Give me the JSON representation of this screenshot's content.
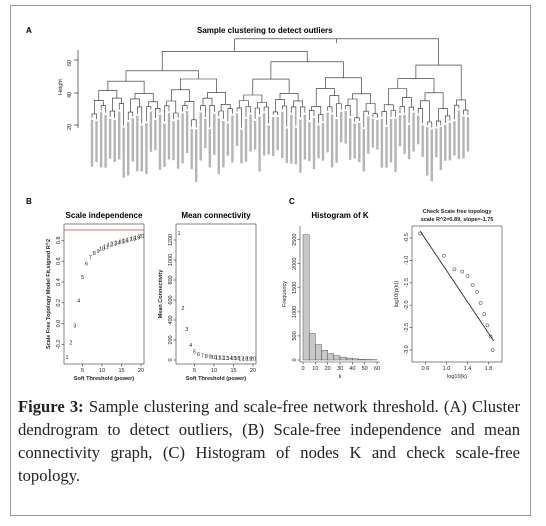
{
  "panels": {
    "A": {
      "label": "A",
      "title": "Sample clustering to detect outliers",
      "ylabel": "Height",
      "yticks": [
        "20",
        "40",
        "60"
      ]
    },
    "B": {
      "label": "B",
      "scale": {
        "title": "Scale independence",
        "ylabel": "Scale Free Topology Model Fit,signed R^2",
        "xlabel": "Soft Threshold (power)",
        "yticks": [
          "-0.2",
          "0.0",
          "0.2",
          "0.4",
          "0.6",
          "0.8"
        ],
        "xticks": [
          "5",
          "10",
          "15",
          "20"
        ]
      },
      "mean": {
        "title": "Mean connectivity",
        "ylabel": "Mean Connectivity",
        "xlabel": "Soft Threshold (power)",
        "yticks": [
          "0",
          "200",
          "400",
          "600",
          "800",
          "1000",
          "1200"
        ],
        "xticks": [
          "5",
          "10",
          "15",
          "20"
        ]
      }
    },
    "C": {
      "label": "C",
      "hist": {
        "title": "Histogram of K",
        "ylabel": "Frequency",
        "xlabel": "k",
        "yticks": [
          "0",
          "500",
          "1000",
          "1500",
          "2000",
          "2500"
        ],
        "xticks": [
          "0",
          "10",
          "20",
          "30",
          "40",
          "50",
          "60"
        ]
      },
      "check": {
        "title_line1": "Check Scale free topology",
        "title_line2": "scale R^2=0.89, slope=-1.75",
        "ylabel": "log10(p(k))",
        "xlabel": "log10(k)",
        "yticks": [
          "-3.0",
          "-2.5",
          "-2.0",
          "-1.5",
          "-1.0",
          "-0.5"
        ],
        "xticks": [
          "0.6",
          "1.0",
          "1.4",
          "1.8"
        ]
      }
    }
  },
  "caption": {
    "figure_label": "Figure 3:",
    "text": " Sample clustering and scale-free network threshold. (A) Cluster dendrogram to detect outliers, (B) Scale-free independence and mean connectivity graph, (C) Histogram of nodes K and check scale-free topology."
  },
  "chart_data": [
    {
      "type": "scatter",
      "title": "Scale independence",
      "xlabel": "Soft Threshold (power)",
      "ylabel": "Scale Free Topology Model Fit,signed R^2",
      "x": [
        1,
        2,
        3,
        4,
        5,
        6,
        7,
        8,
        9,
        10,
        11,
        12,
        13,
        14,
        15,
        16,
        17,
        18,
        19,
        20
      ],
      "y": [
        -0.32,
        -0.18,
        -0.02,
        0.22,
        0.45,
        0.58,
        0.64,
        0.68,
        0.7,
        0.72,
        0.74,
        0.76,
        0.77,
        0.78,
        0.79,
        0.8,
        0.81,
        0.82,
        0.83,
        0.84
      ],
      "xlim": [
        1,
        20
      ],
      "ylim": [
        -0.35,
        0.9
      ],
      "reference_line_y": 0.9
    },
    {
      "type": "scatter",
      "title": "Mean connectivity",
      "xlabel": "Soft Threshold (power)",
      "ylabel": "Mean Connectivity",
      "x": [
        1,
        2,
        3,
        4,
        5,
        6,
        7,
        8,
        9,
        10,
        11,
        12,
        13,
        14,
        15,
        16,
        17,
        18,
        19,
        20
      ],
      "y": [
        1270,
        520,
        310,
        150,
        85,
        60,
        45,
        38,
        33,
        30,
        27,
        24,
        22,
        20,
        19,
        18,
        17,
        16,
        15,
        14
      ],
      "xlim": [
        1,
        20
      ],
      "ylim": [
        0,
        1300
      ]
    },
    {
      "type": "bar",
      "title": "Histogram of K",
      "xlabel": "k",
      "ylabel": "Frequency",
      "categories": [
        "0-5",
        "5-10",
        "10-15",
        "15-20",
        "20-25",
        "25-30",
        "30-35",
        "35-40",
        "40-45",
        "45-50",
        "50-55",
        "55-60"
      ],
      "values": [
        2600,
        550,
        320,
        200,
        130,
        90,
        60,
        40,
        25,
        15,
        8,
        5
      ],
      "xlim": [
        0,
        60
      ],
      "ylim": [
        0,
        2700
      ]
    },
    {
      "type": "scatter",
      "title": "Check Scale free topology",
      "xlabel": "log10(k)",
      "ylabel": "log10(p(k))",
      "x": [
        0.5,
        0.95,
        1.15,
        1.3,
        1.4,
        1.5,
        1.58,
        1.65,
        1.72,
        1.78,
        1.84,
        1.88
      ],
      "y": [
        -0.4,
        -0.9,
        -1.2,
        -1.25,
        -1.35,
        -1.55,
        -1.7,
        -1.95,
        -2.2,
        -2.45,
        -2.7,
        -3.0
      ],
      "xlim": [
        0.4,
        2.0
      ],
      "ylim": [
        -3.2,
        -0.3
      ],
      "fit_line": {
        "x": [
          0.5,
          1.9
        ],
        "y": [
          -0.35,
          -2.8
        ]
      }
    }
  ]
}
